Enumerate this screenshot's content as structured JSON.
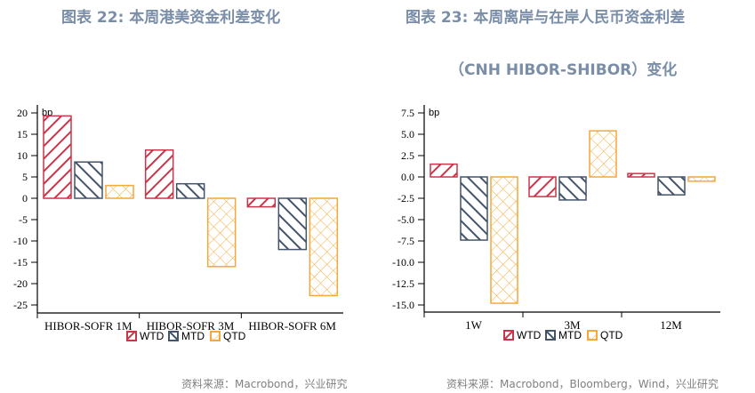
{
  "left": {
    "title": "图表 22: 本周港美资金利差变化",
    "source": "资料来源：Macrobond，兴业研究"
  },
  "right": {
    "title_line1": "图表 23: 本周离岸与在岸人民币资金利差",
    "title_line2": "（CNH HIBOR-SHIBOR）变化",
    "source": "资料来源：Macrobond，Bloomberg，Wind，兴业研究"
  },
  "colors": {
    "WTD": "#c9364a",
    "MTD": "#44546a",
    "QTD": "#f4a93a",
    "title": "#7a8ea8"
  },
  "chart_data": [
    {
      "type": "bar",
      "title": "图表 22: 本周港美资金利差变化",
      "ylabel": "bp",
      "xlabel": "",
      "categories": [
        "HIBOR-SOFR 1M",
        "HIBOR-SOFR 3M",
        "HIBOR-SOFR 6M"
      ],
      "series": [
        {
          "name": "WTD",
          "values": [
            19.3,
            11.3,
            -2.0
          ]
        },
        {
          "name": "MTD",
          "values": [
            8.5,
            3.4,
            -12.0
          ]
        },
        {
          "name": "QTD",
          "values": [
            3.0,
            -16.0,
            -22.8
          ]
        }
      ],
      "yticks": [
        20,
        15,
        10,
        5,
        0,
        -5,
        -10,
        -15,
        -20,
        -25
      ],
      "ylim": [
        -27,
        21
      ],
      "grid": false,
      "legend_position": "bottom"
    },
    {
      "type": "bar",
      "title": "图表 23: 本周离岸与在岸人民币资金利差（CNH HIBOR-SHIBOR）变化",
      "ylabel": "bp",
      "xlabel": "",
      "categories": [
        "1W",
        "3M",
        "12M"
      ],
      "series": [
        {
          "name": "WTD",
          "values": [
            1.5,
            -2.3,
            0.4
          ]
        },
        {
          "name": "MTD",
          "values": [
            -7.4,
            -2.7,
            -2.1
          ]
        },
        {
          "name": "QTD",
          "values": [
            -14.8,
            5.4,
            -0.5
          ]
        }
      ],
      "yticks": [
        "7.5",
        "5.0",
        "2.5",
        "0.0",
        "-2.5",
        "-5.0",
        "-7.5",
        "-10.0",
        "-12.5",
        "-15.0"
      ],
      "ylim": [
        -15.8,
        8.0
      ],
      "grid": false,
      "legend_position": "bottom"
    }
  ]
}
